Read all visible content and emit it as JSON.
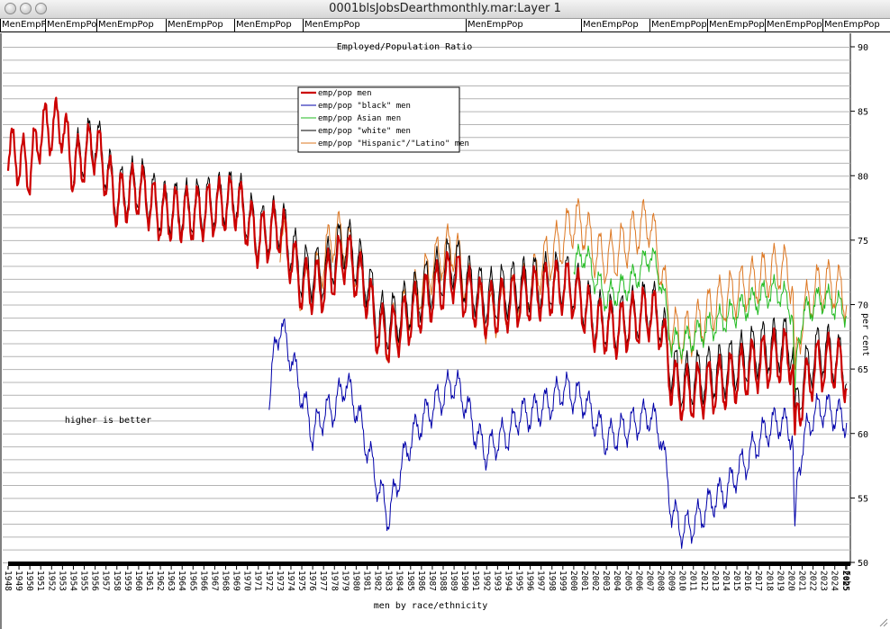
{
  "window": {
    "title": "0001blsJobsDearthmonthly.mar:Layer 1",
    "buttons": [
      "close",
      "minimize",
      "zoom"
    ],
    "tabs": [
      "MenEmpPo",
      "MenEmpPop",
      "MenEmpPop",
      "MenEmpPop",
      "MenEmpPop",
      "MenEmpPop",
      "MenEmpPop",
      "MenEmpPop",
      "MenEmpPop",
      "MenEmpPop",
      "MenEmpPop",
      "MenEmpPop"
    ]
  },
  "colors": {
    "men": "#cc0000",
    "black": "#0000aa",
    "asian": "#22bb22",
    "white": "#000000",
    "hispanic": "#dd7722",
    "grid": "#b4b4b4"
  },
  "chart_data": {
    "type": "line",
    "title": "Employed/Population Ratio",
    "xlabel": "men by race/ethnicity",
    "ylabel": "per cent",
    "annotation": "higher is better",
    "ylim": [
      50,
      90
    ],
    "yticks": [
      50,
      55,
      60,
      65,
      70,
      75,
      80,
      85,
      90
    ],
    "xlim": [
      1948,
      2025.1
    ],
    "x_tick_labels": [
      "1948",
      "1949",
      "1950",
      "1951",
      "1952",
      "1953",
      "1954",
      "1955",
      "1956",
      "1957",
      "1958",
      "1959",
      "1960",
      "1961",
      "1962",
      "1963",
      "1964",
      "1965",
      "1966",
      "1967",
      "1968",
      "1969",
      "1970",
      "1971",
      "1972",
      "1973",
      "1974",
      "1975",
      "1976",
      "1977",
      "1978",
      "1979",
      "1980",
      "1981",
      "1982",
      "1983",
      "1984",
      "1985",
      "1986",
      "1987",
      "1988",
      "1989",
      "1990",
      "1991",
      "1992",
      "1993",
      "1994",
      "1995",
      "1996",
      "1997",
      "1998",
      "1999",
      "2000",
      "2001",
      "2002",
      "2003",
      "2004",
      "2005",
      "2006",
      "2007",
      "2008",
      "2009",
      "2010",
      "2011",
      "2012",
      "2013",
      "2014",
      "2015",
      "2016",
      "2017",
      "2018",
      "2019",
      "2020",
      "2021",
      "2022",
      "2023",
      "2024",
      "2025",
      "Feb"
    ],
    "grid": true,
    "legend_position": "top-left",
    "series": [
      {
        "name": "emp/pop men",
        "color_key": "men",
        "bold": true,
        "seasonal_amplitude": 2.0,
        "x": [
          1948,
          1950,
          1951,
          1953,
          1954,
          1956,
          1958,
          1960,
          1962,
          1965,
          1969,
          1970,
          1971,
          1973,
          1975,
          1977,
          1979,
          1981,
          1982,
          1983,
          1986,
          1989,
          1990,
          1992,
          1995,
          1999,
          2000,
          2002,
          2004,
          2007,
          2008,
          2009,
          2010,
          2012,
          2014,
          2017,
          2019,
          2020.15,
          2020.3,
          2020.6,
          2021,
          2022,
          2023,
          2024,
          2025.1
        ],
        "y": [
          82,
          80.5,
          83.5,
          84,
          80.5,
          82.5,
          78,
          79,
          77,
          77,
          78,
          76.5,
          75,
          76,
          71.5,
          71.5,
          74,
          71,
          68,
          67.5,
          70,
          72.5,
          71,
          69.5,
          70.5,
          71.5,
          71,
          68.5,
          68,
          69.5,
          68.5,
          64,
          63,
          63.5,
          64,
          65.5,
          66,
          66,
          58,
          62,
          63,
          65,
          65.5,
          65.5,
          64.5
        ]
      },
      {
        "name": "emp/pop \"black\" men",
        "color_key": "black",
        "bold": false,
        "seasonal_amplitude": 1.2,
        "x": [
          1972,
          1972.6,
          1973,
          1974,
          1975,
          1976,
          1977,
          1978,
          1979,
          1980,
          1981,
          1982,
          1983,
          1984,
          1985,
          1986,
          1987,
          1988,
          1989,
          1990,
          1991,
          1992,
          1993,
          1994,
          1995,
          1996,
          1997,
          1998,
          1999,
          2000,
          2001,
          2002,
          2003,
          2004,
          2005,
          2006,
          2007,
          2008,
          2009,
          2010,
          2011,
          2012,
          2013,
          2014,
          2015,
          2016,
          2017,
          2018,
          2019,
          2020.15,
          2020.3,
          2020.6,
          2021,
          2022,
          2023,
          2024,
          2025.1
        ],
        "y": [
          62.5,
          67,
          68.5,
          66,
          63,
          60,
          61.5,
          62,
          64,
          62,
          59,
          56,
          53.5,
          57,
          59.5,
          61,
          62,
          63,
          64,
          62.5,
          60,
          58.5,
          59.5,
          60,
          61.5,
          61.5,
          62,
          62.5,
          63.5,
          63,
          62.5,
          61,
          59.5,
          60,
          60.5,
          61,
          61.5,
          60,
          54,
          52.5,
          53,
          54,
          55,
          55.5,
          57,
          58,
          59.5,
          60.5,
          61,
          60,
          51,
          57,
          59,
          61.5,
          62,
          61.5,
          61
        ]
      },
      {
        "name": "emp/pop Asian men",
        "color_key": "asian",
        "bold": false,
        "seasonal_amplitude": 1.0,
        "x": [
          2000,
          2001,
          2002,
          2003,
          2004,
          2005,
          2006,
          2007,
          2008,
          2009,
          2010,
          2011,
          2012,
          2013,
          2014,
          2015,
          2016,
          2017,
          2018,
          2019,
          2020.15,
          2020.3,
          2020.6,
          2021,
          2022,
          2023,
          2024,
          2025.1
        ],
        "y": [
          73,
          74,
          72,
          70.5,
          71,
          71.5,
          72.5,
          74,
          72,
          67,
          67,
          67.5,
          68,
          68.5,
          69,
          69.5,
          70,
          70.5,
          71,
          71,
          69.5,
          62,
          67,
          69,
          70,
          70.5,
          70,
          69.5
        ]
      },
      {
        "name": "emp/pop \"white\" men",
        "color_key": "white",
        "bold": false,
        "seasonal_amplitude": 2.0,
        "x": [
          1954,
          1956,
          1958,
          1960,
          1962,
          1965,
          1969,
          1970,
          1971,
          1973,
          1975,
          1977,
          1979,
          1981,
          1982,
          1983,
          1986,
          1989,
          1990,
          1992,
          1995,
          1999,
          2000,
          2002,
          2004,
          2007,
          2008,
          2009,
          2010,
          2012,
          2014,
          2017,
          2019,
          2020.15,
          2020.3,
          2020.6,
          2021,
          2022,
          2023,
          2024,
          2025.1
        ],
        "y": [
          81,
          83,
          78.5,
          79.5,
          77.5,
          77.5,
          78.5,
          77,
          75.5,
          76.5,
          72.5,
          72.5,
          75,
          72,
          69,
          68.5,
          71,
          73.5,
          72,
          70.5,
          71.5,
          72,
          71.5,
          69,
          68.5,
          70,
          69,
          65,
          64,
          64.5,
          65,
          66.5,
          67,
          67,
          60,
          63,
          64,
          66,
          66.5,
          66,
          65
        ]
      },
      {
        "name": "emp/pop \"Hispanic\"/\"Latino\" men",
        "color_key": "hispanic",
        "bold": false,
        "seasonal_amplitude": 1.8,
        "x": [
          1973,
          1974,
          1975,
          1976,
          1977,
          1978,
          1979,
          1980,
          1981,
          1982,
          1983,
          1984,
          1985,
          1986,
          1987,
          1988,
          1989,
          1990,
          1991,
          1992,
          1993,
          1994,
          1995,
          1996,
          1997,
          1998,
          1999,
          2000,
          2001,
          2002,
          2003,
          2004,
          2005,
          2006,
          2007,
          2008,
          2009,
          2010,
          2011,
          2012,
          2013,
          2014,
          2015,
          2016,
          2017,
          2018,
          2019,
          2020.15,
          2020.3,
          2020.6,
          2021,
          2022,
          2023,
          2024,
          2025.1
        ],
        "y": [
          75,
          74,
          71,
          71.5,
          73.5,
          75.5,
          75,
          73,
          71,
          68,
          67.5,
          69,
          70,
          71.5,
          73,
          74,
          74.5,
          72,
          70,
          69,
          69.5,
          70,
          71,
          71.5,
          73,
          74,
          75,
          76.5,
          76,
          74,
          73.5,
          74,
          75,
          76,
          76.5,
          73,
          68,
          67.5,
          68,
          69,
          70,
          70.5,
          71,
          71.5,
          72,
          72.5,
          73,
          72,
          63,
          67,
          69,
          71,
          71.5,
          71.5,
          70.5
        ]
      }
    ]
  }
}
